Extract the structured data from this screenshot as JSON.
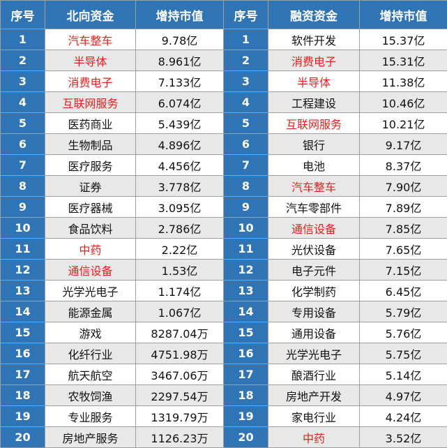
{
  "headers": {
    "index": "序号",
    "northbound_name": "北向资金",
    "northbound_value": "增持市值",
    "index2": "序号",
    "margin_name": "融资资金",
    "margin_value": "增持市值"
  },
  "highlight_color": "#e8201c",
  "header_color": "#2f74b5",
  "northbound": [
    {
      "idx": "1",
      "name": "汽车整车",
      "value": "9.78亿",
      "highlight": true
    },
    {
      "idx": "2",
      "name": "半导体",
      "value": "8.961亿",
      "highlight": true
    },
    {
      "idx": "3",
      "name": "消费电子",
      "value": "7.133亿",
      "highlight": true
    },
    {
      "idx": "4",
      "name": "互联网服务",
      "value": "6.074亿",
      "highlight": true
    },
    {
      "idx": "5",
      "name": "医药商业",
      "value": "5.439亿",
      "highlight": false
    },
    {
      "idx": "6",
      "name": "生物制品",
      "value": "4.896亿",
      "highlight": false
    },
    {
      "idx": "7",
      "name": "医疗服务",
      "value": "4.456亿",
      "highlight": false
    },
    {
      "idx": "8",
      "name": "证券",
      "value": "3.778亿",
      "highlight": false
    },
    {
      "idx": "9",
      "name": "医疗器械",
      "value": "3.095亿",
      "highlight": false
    },
    {
      "idx": "10",
      "name": "食品饮料",
      "value": "2.786亿",
      "highlight": false
    },
    {
      "idx": "11",
      "name": "中药",
      "value": "2.22亿",
      "highlight": true
    },
    {
      "idx": "12",
      "name": "通信设备",
      "value": "1.53亿",
      "highlight": true
    },
    {
      "idx": "13",
      "name": "光学光电子",
      "value": "1.174亿",
      "highlight": false
    },
    {
      "idx": "14",
      "name": "能源金属",
      "value": "1.067亿",
      "highlight": false
    },
    {
      "idx": "15",
      "name": "游戏",
      "value": "8287.04万",
      "highlight": false
    },
    {
      "idx": "16",
      "name": "化纤行业",
      "value": "4751.98万",
      "highlight": false
    },
    {
      "idx": "17",
      "name": "航天航空",
      "value": "3467.06万",
      "highlight": false
    },
    {
      "idx": "18",
      "name": "农牧饲渔",
      "value": "2297.54万",
      "highlight": false
    },
    {
      "idx": "19",
      "name": "专业服务",
      "value": "1319.79万",
      "highlight": false
    },
    {
      "idx": "20",
      "name": "房地产服务",
      "value": "1126.23万",
      "highlight": false
    }
  ],
  "margin": [
    {
      "idx": "1",
      "name": "软件开发",
      "value": "15.37亿",
      "highlight": false
    },
    {
      "idx": "2",
      "name": "消费电子",
      "value": "15.31亿",
      "highlight": true
    },
    {
      "idx": "3",
      "name": "半导体",
      "value": "11.38亿",
      "highlight": true
    },
    {
      "idx": "4",
      "name": "工程建设",
      "value": "10.46亿",
      "highlight": false
    },
    {
      "idx": "5",
      "name": "互联网服务",
      "value": "10.21亿",
      "highlight": true
    },
    {
      "idx": "6",
      "name": "银行",
      "value": "9.17亿",
      "highlight": false
    },
    {
      "idx": "7",
      "name": "电池",
      "value": "8.37亿",
      "highlight": false
    },
    {
      "idx": "8",
      "name": "汽车整车",
      "value": "7.90亿",
      "highlight": true
    },
    {
      "idx": "9",
      "name": "汽车零部件",
      "value": "7.89亿",
      "highlight": false
    },
    {
      "idx": "10",
      "name": "通信设备",
      "value": "7.85亿",
      "highlight": true
    },
    {
      "idx": "11",
      "name": "光伏设备",
      "value": "7.65亿",
      "highlight": false
    },
    {
      "idx": "12",
      "name": "电子元件",
      "value": "7.15亿",
      "highlight": false
    },
    {
      "idx": "13",
      "name": "化学制药",
      "value": "6.45亿",
      "highlight": false
    },
    {
      "idx": "14",
      "name": "专用设备",
      "value": "5.79亿",
      "highlight": false
    },
    {
      "idx": "15",
      "name": "通用设备",
      "value": "5.76亿",
      "highlight": false
    },
    {
      "idx": "16",
      "name": "光学光电子",
      "value": "5.75亿",
      "highlight": false
    },
    {
      "idx": "17",
      "name": "酿酒行业",
      "value": "5.14亿",
      "highlight": false
    },
    {
      "idx": "18",
      "name": "房地产开发",
      "value": "4.97亿",
      "highlight": false
    },
    {
      "idx": "19",
      "name": "家电行业",
      "value": "4.24亿",
      "highlight": false
    },
    {
      "idx": "20",
      "name": "中药",
      "value": "3.52亿",
      "highlight": true
    }
  ]
}
